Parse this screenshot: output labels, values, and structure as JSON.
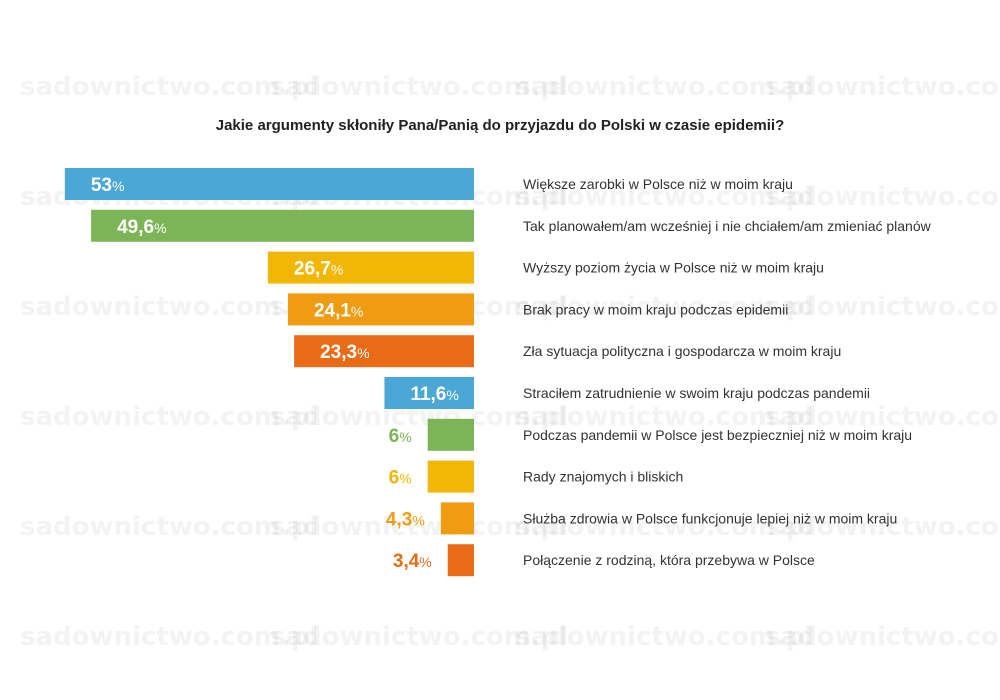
{
  "chart_data": {
    "type": "bar",
    "title": "Jakie argumenty skłoniły Pana/Panią do przyjazdu do Polski w czasie epidemii?",
    "orientation": "horizontal",
    "unit": "%",
    "xlabel": "",
    "ylabel": "",
    "xlim": [
      0,
      53
    ],
    "grid": false,
    "legend": "none",
    "categories": [
      "Większe zarobki w Polsce niż w moim kraju",
      "Tak planowałem/am wcześniej i nie chciałem/am zmieniać planów",
      "Wyższy poziom życia w Polsce niż w moim kraju",
      "Brak pracy w moim kraju podczas epidemii",
      "Zła sytuacja polityczna i gospodarcza w moim kraju",
      "Straciłem zatrudnienie w swoim kraju podczas pandemii",
      "Podczas pandemii w Polsce jest bezpieczniej niż w moim kraju",
      "Rady znajomych i bliskich",
      "Służba zdrowia w Polsce funkcjonuje lepiej niż w moim kraju",
      "Połączenie z rodziną, która przebywa w Polsce"
    ],
    "values": [
      53,
      49.6,
      26.7,
      24.1,
      23.3,
      11.6,
      6,
      6,
      4.3,
      3.4
    ],
    "value_labels": [
      "53",
      "49,6",
      "26,7",
      "24,1",
      "23,3",
      "11,6",
      "6",
      "6",
      "4,3",
      "3,4"
    ],
    "colors": [
      "#4ba7d6",
      "#7bb555",
      "#f2b705",
      "#ef9c12",
      "#ea6b16",
      "#4ba7d6",
      "#7bb555",
      "#f2b705",
      "#ef9c12",
      "#ea6b16"
    ]
  },
  "watermark": "sadownictwo.com.pl"
}
